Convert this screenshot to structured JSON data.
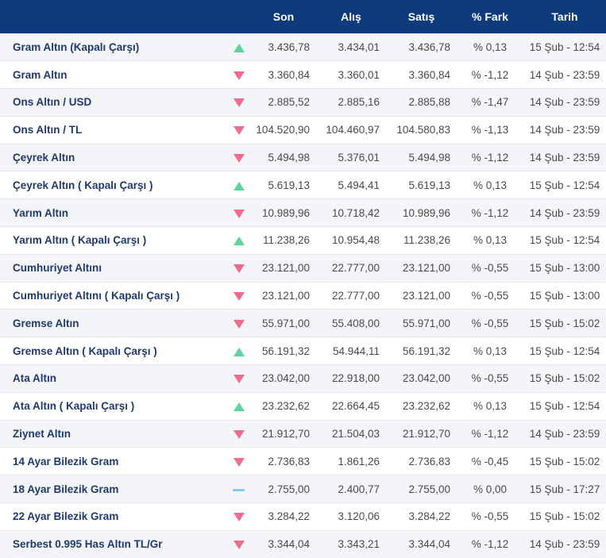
{
  "colors": {
    "header_bg": "#0d3b7c",
    "up": "#5ed39a",
    "down": "#f26b8a",
    "flat": "#7fd3e0",
    "name_text": "#1f3a6e"
  },
  "headers": {
    "name": "",
    "trend": "",
    "son": "Son",
    "alis": "Alış",
    "satis": "Satış",
    "fark": "% Fark",
    "tarih": "Tarih"
  },
  "rows": [
    {
      "name": "Gram Altın (Kapalı Çarşı)",
      "trend": "up",
      "son": "3.436,78",
      "alis": "3.434,01",
      "satis": "3.436,78",
      "fark": "% 0,13",
      "tarih": "15 Şub - 12:54"
    },
    {
      "name": "Gram Altın",
      "trend": "down",
      "son": "3.360,84",
      "alis": "3.360,01",
      "satis": "3.360,84",
      "fark": "% -1,12",
      "tarih": "14 Şub - 23:59"
    },
    {
      "name": "Ons Altın / USD",
      "trend": "down",
      "son": "2.885,52",
      "alis": "2.885,16",
      "satis": "2.885,88",
      "fark": "% -1,47",
      "tarih": "14 Şub - 23:59"
    },
    {
      "name": "Ons Altın / TL",
      "trend": "down",
      "son": "104.520,90",
      "alis": "104.460,97",
      "satis": "104.580,83",
      "fark": "% -1,13",
      "tarih": "14 Şub - 23:59"
    },
    {
      "name": "Çeyrek Altın",
      "trend": "down",
      "son": "5.494,98",
      "alis": "5.376,01",
      "satis": "5.494,98",
      "fark": "% -1,12",
      "tarih": "14 Şub - 23:59"
    },
    {
      "name": "Çeyrek Altın ( Kapalı Çarşı )",
      "trend": "up",
      "son": "5.619,13",
      "alis": "5.494,41",
      "satis": "5.619,13",
      "fark": "% 0,13",
      "tarih": "15 Şub - 12:54"
    },
    {
      "name": "Yarım Altın",
      "trend": "down",
      "son": "10.989,96",
      "alis": "10.718,42",
      "satis": "10.989,96",
      "fark": "% -1,12",
      "tarih": "14 Şub - 23:59"
    },
    {
      "name": "Yarım Altın ( Kapalı Çarşı )",
      "trend": "up",
      "son": "11.238,26",
      "alis": "10.954,48",
      "satis": "11.238,26",
      "fark": "% 0,13",
      "tarih": "15 Şub - 12:54"
    },
    {
      "name": "Cumhuriyet Altını",
      "trend": "down",
      "son": "23.121,00",
      "alis": "22.777,00",
      "satis": "23.121,00",
      "fark": "% -0,55",
      "tarih": "15 Şub - 13:00"
    },
    {
      "name": "Cumhuriyet Altını ( Kapalı Çarşı )",
      "trend": "down",
      "son": "23.121,00",
      "alis": "22.777,00",
      "satis": "23.121,00",
      "fark": "% -0,55",
      "tarih": "15 Şub - 13:00"
    },
    {
      "name": "Gremse Altın",
      "trend": "down",
      "son": "55.971,00",
      "alis": "55.408,00",
      "satis": "55.971,00",
      "fark": "% -0,55",
      "tarih": "15 Şub - 15:02"
    },
    {
      "name": "Gremse Altın ( Kapalı Çarşı )",
      "trend": "up",
      "son": "56.191,32",
      "alis": "54.944,11",
      "satis": "56.191,32",
      "fark": "% 0,13",
      "tarih": "15 Şub - 12:54"
    },
    {
      "name": "Ata Altın",
      "trend": "down",
      "son": "23.042,00",
      "alis": "22.918,00",
      "satis": "23.042,00",
      "fark": "% -0,55",
      "tarih": "15 Şub - 15:02"
    },
    {
      "name": "Ata Altın ( Kapalı Çarşı )",
      "trend": "up",
      "son": "23.232,62",
      "alis": "22.664,45",
      "satis": "23.232,62",
      "fark": "% 0,13",
      "tarih": "15 Şub - 12:54"
    },
    {
      "name": "Ziynet Altın",
      "trend": "down",
      "son": "21.912,70",
      "alis": "21.504,03",
      "satis": "21.912,70",
      "fark": "% -1,12",
      "tarih": "14 Şub - 23:59"
    },
    {
      "name": "14 Ayar Bilezik Gram",
      "trend": "down",
      "son": "2.736,83",
      "alis": "1.861,26",
      "satis": "2.736,83",
      "fark": "% -0,45",
      "tarih": "15 Şub - 15:02"
    },
    {
      "name": "18 Ayar Bilezik Gram",
      "trend": "flat",
      "son": "2.755,00",
      "alis": "2.400,77",
      "satis": "2.755,00",
      "fark": "% 0,00",
      "tarih": "15 Şub - 17:27"
    },
    {
      "name": "22 Ayar Bilezik Gram",
      "trend": "down",
      "son": "3.284,22",
      "alis": "3.120,06",
      "satis": "3.284,22",
      "fark": "% -0,55",
      "tarih": "15 Şub - 15:02"
    },
    {
      "name": "Serbest 0.995 Has Altın TL/Gr",
      "trend": "down",
      "son": "3.344,04",
      "alis": "3.343,21",
      "satis": "3.344,04",
      "fark": "% -1,12",
      "tarih": "14 Şub - 23:59"
    }
  ]
}
